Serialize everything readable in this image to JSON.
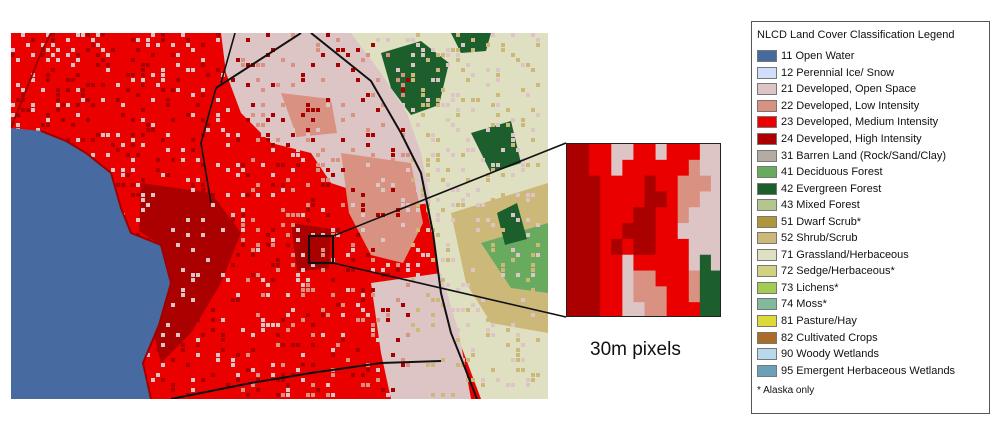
{
  "colors": {
    "water": "#476ba1",
    "open_space": "#dec5c5",
    "low": "#d99282",
    "medium": "#eb0000",
    "high": "#ab0000",
    "evergreen": "#1c5f2c",
    "deciduous": "#68ab5f",
    "shrub": "#ccb879",
    "grassland": "#dfdfc2",
    "boundary": "#111111"
  },
  "zoom": {
    "caption": "30m pixels",
    "pixels": [
      [
        "high",
        "high",
        "medium",
        "medium",
        "open_space",
        "open_space",
        "medium",
        "medium",
        "open_space",
        "medium",
        "medium",
        "medium",
        "open_space",
        "open_space"
      ],
      [
        "high",
        "high",
        "medium",
        "medium",
        "open_space",
        "medium",
        "medium",
        "medium",
        "medium",
        "medium",
        "medium",
        "low",
        "open_space",
        "open_space"
      ],
      [
        "high",
        "high",
        "high",
        "medium",
        "medium",
        "medium",
        "medium",
        "high",
        "medium",
        "medium",
        "low",
        "low",
        "low",
        "open_space"
      ],
      [
        "high",
        "high",
        "high",
        "medium",
        "medium",
        "medium",
        "medium",
        "high",
        "high",
        "medium",
        "low",
        "low",
        "open_space",
        "open_space"
      ],
      [
        "high",
        "high",
        "high",
        "medium",
        "medium",
        "medium",
        "high",
        "high",
        "medium",
        "medium",
        "low",
        "open_space",
        "open_space",
        "open_space"
      ],
      [
        "high",
        "high",
        "high",
        "medium",
        "medium",
        "high",
        "high",
        "high",
        "medium",
        "medium",
        "open_space",
        "open_space",
        "open_space",
        "open_space"
      ],
      [
        "high",
        "high",
        "high",
        "medium",
        "high",
        "medium",
        "high",
        "high",
        "medium",
        "medium",
        "medium",
        "open_space",
        "open_space",
        "open_space"
      ],
      [
        "high",
        "high",
        "high",
        "medium",
        "medium",
        "open_space",
        "medium",
        "medium",
        "medium",
        "medium",
        "medium",
        "open_space",
        "evergreen",
        "open_space"
      ],
      [
        "high",
        "high",
        "high",
        "medium",
        "medium",
        "open_space",
        "low",
        "low",
        "medium",
        "medium",
        "medium",
        "low",
        "evergreen",
        "evergreen"
      ],
      [
        "high",
        "high",
        "high",
        "medium",
        "medium",
        "open_space",
        "low",
        "low",
        "low",
        "medium",
        "medium",
        "low",
        "evergreen",
        "evergreen"
      ],
      [
        "high",
        "high",
        "high",
        "medium",
        "medium",
        "open_space",
        "open_space",
        "low",
        "low",
        "medium",
        "medium",
        "medium",
        "evergreen",
        "evergreen"
      ]
    ]
  },
  "legend": {
    "title": "NLCD Land Cover Classification Legend",
    "items": [
      {
        "label": "11 Open Water",
        "color": "#476ba1"
      },
      {
        "label": "12 Perennial Ice/ Snow",
        "color": "#d1defa"
      },
      {
        "label": "21 Developed, Open Space",
        "color": "#dec5c5"
      },
      {
        "label": "22 Developed, Low Intensity",
        "color": "#d99282"
      },
      {
        "label": "23 Developed, Medium Intensity",
        "color": "#eb0000"
      },
      {
        "label": "24 Developed, High Intensity",
        "color": "#ab0000"
      },
      {
        "label": "31 Barren Land (Rock/Sand/Clay)",
        "color": "#b3aca3"
      },
      {
        "label": "41 Deciduous Forest",
        "color": "#68ab5f"
      },
      {
        "label": "42 Evergreen Forest",
        "color": "#1c5f2c"
      },
      {
        "label": "43 Mixed Forest",
        "color": "#b5c58f"
      },
      {
        "label": "51 Dwarf Scrub*",
        "color": "#af963c"
      },
      {
        "label": "52 Shrub/Scrub",
        "color": "#ccb879"
      },
      {
        "label": "71 Grassland/Herbaceous",
        "color": "#dfdfc2"
      },
      {
        "label": "72 Sedge/Herbaceous*",
        "color": "#d1d182"
      },
      {
        "label": "73 Lichens*",
        "color": "#a3cc51"
      },
      {
        "label": "74 Moss*",
        "color": "#82ba9e"
      },
      {
        "label": "81 Pasture/Hay",
        "color": "#dcd939"
      },
      {
        "label": "82 Cultivated Crops",
        "color": "#ab6c28"
      },
      {
        "label": "90 Woody Wetlands",
        "color": "#b8d9eb"
      },
      {
        "label": "95 Emergent Herbaceous Wetlands",
        "color": "#6c9fb8"
      }
    ],
    "footnote": "* Alaska only"
  }
}
